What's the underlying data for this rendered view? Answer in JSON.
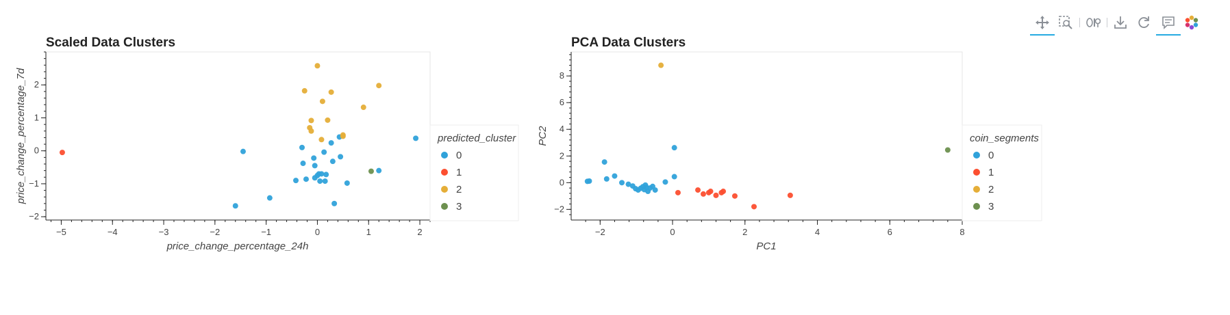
{
  "toolbar": {
    "tools": [
      {
        "name": "pan-tool",
        "icon": "move-icon",
        "active": true
      },
      {
        "name": "box-zoom-tool",
        "icon": "box-zoom-icon",
        "active": false
      },
      {
        "name": "wheel-zoom-tool",
        "icon": "wheel-zoom-icon",
        "active": false
      },
      {
        "name": "save-tool",
        "icon": "save-icon",
        "active": false
      },
      {
        "name": "reset-tool",
        "icon": "reset-icon",
        "active": false
      },
      {
        "name": "hover-tool",
        "icon": "hover-icon",
        "active": true
      },
      {
        "name": "bokeh-logo",
        "icon": "bokeh-logo-icon",
        "active": false
      }
    ],
    "accent": "#26aae1"
  },
  "chart_data": [
    {
      "type": "scatter",
      "title": "Scaled Data Clusters",
      "xlabel": "price_change_percentage_24h",
      "ylabel": "price_change_percentage_7d",
      "xlim": [
        -5.3,
        2.2
      ],
      "ylim": [
        -2.1,
        3.0
      ],
      "xticks": [
        -5,
        -4,
        -3,
        -2,
        -1,
        0,
        1,
        2
      ],
      "yticks": [
        -2,
        -1,
        0,
        1,
        2
      ],
      "legend_title": "predicted_cluster",
      "legend_placement": "right",
      "grid": false,
      "series": [
        {
          "name": "0",
          "color": "#30a2da",
          "points": [
            [
              -1.6,
              -1.67
            ],
            [
              -1.45,
              -0.02
            ],
            [
              -0.93,
              -1.43
            ],
            [
              -0.42,
              -0.9
            ],
            [
              -0.3,
              0.1
            ],
            [
              -0.28,
              -0.38
            ],
            [
              -0.22,
              -0.86
            ],
            [
              -0.07,
              -0.22
            ],
            [
              -0.05,
              -0.45
            ],
            [
              -0.05,
              -0.82
            ],
            [
              0.0,
              -0.75
            ],
            [
              0.03,
              -0.7
            ],
            [
              0.05,
              -0.92
            ],
            [
              0.08,
              -0.7
            ],
            [
              0.13,
              -0.04
            ],
            [
              0.15,
              -0.92
            ],
            [
              0.17,
              -0.72
            ],
            [
              0.27,
              0.24
            ],
            [
              0.3,
              -0.32
            ],
            [
              0.33,
              -1.6
            ],
            [
              0.43,
              0.42
            ],
            [
              0.45,
              -0.18
            ],
            [
              0.58,
              -0.98
            ],
            [
              1.2,
              -0.6
            ],
            [
              1.92,
              0.38
            ]
          ]
        },
        {
          "name": "1",
          "color": "#fc4f30",
          "points": [
            [
              -4.98,
              -0.05
            ]
          ]
        },
        {
          "name": "2",
          "color": "#e5ae38",
          "points": [
            [
              0.0,
              2.58
            ],
            [
              -0.25,
              1.82
            ],
            [
              0.27,
              1.78
            ],
            [
              1.2,
              1.98
            ],
            [
              0.1,
              1.5
            ],
            [
              0.9,
              1.32
            ],
            [
              -0.12,
              0.92
            ],
            [
              0.2,
              0.93
            ],
            [
              -0.15,
              0.7
            ],
            [
              -0.12,
              0.6
            ],
            [
              0.08,
              0.34
            ],
            [
              0.5,
              0.48
            ],
            [
              0.5,
              0.44
            ]
          ]
        },
        {
          "name": "3",
          "color": "#6d904f",
          "points": [
            [
              1.05,
              -0.62
            ]
          ]
        }
      ]
    },
    {
      "type": "scatter",
      "title": "PCA Data Clusters",
      "xlabel": "PC1",
      "ylabel": "PC2",
      "xlim": [
        -2.8,
        8.0
      ],
      "ylim": [
        -2.8,
        9.8
      ],
      "xticks": [
        -2,
        0,
        2,
        4,
        6,
        8
      ],
      "yticks": [
        -2,
        0,
        2,
        4,
        6,
        8
      ],
      "legend_title": "coin_segments",
      "legend_placement": "right",
      "grid": false,
      "series": [
        {
          "name": "0",
          "color": "#30a2da",
          "points": [
            [
              -2.35,
              0.1
            ],
            [
              -2.3,
              0.12
            ],
            [
              -1.88,
              1.55
            ],
            [
              -1.82,
              0.28
            ],
            [
              -1.6,
              0.5
            ],
            [
              -1.4,
              0.0
            ],
            [
              -1.22,
              -0.12
            ],
            [
              -1.1,
              -0.25
            ],
            [
              -1.02,
              -0.45
            ],
            [
              -0.95,
              -0.55
            ],
            [
              -0.88,
              -0.42
            ],
            [
              -0.82,
              -0.3
            ],
            [
              -0.78,
              -0.52
            ],
            [
              -0.75,
              -0.18
            ],
            [
              -0.72,
              -0.35
            ],
            [
              -0.68,
              -0.65
            ],
            [
              -0.62,
              -0.4
            ],
            [
              -0.55,
              -0.28
            ],
            [
              -0.48,
              -0.55
            ],
            [
              -0.2,
              0.05
            ],
            [
              0.05,
              0.45
            ],
            [
              0.05,
              2.62
            ]
          ]
        },
        {
          "name": "1",
          "color": "#fc4f30",
          "points": [
            [
              0.15,
              -0.75
            ],
            [
              0.7,
              -0.55
            ],
            [
              0.85,
              -0.85
            ],
            [
              1.0,
              -0.75
            ],
            [
              1.05,
              -0.65
            ],
            [
              1.2,
              -0.95
            ],
            [
              1.35,
              -0.75
            ],
            [
              1.4,
              -0.65
            ],
            [
              1.72,
              -1.0
            ],
            [
              2.25,
              -1.8
            ],
            [
              3.25,
              -0.95
            ]
          ]
        },
        {
          "name": "2",
          "color": "#e5ae38",
          "points": [
            [
              -0.32,
              8.8
            ]
          ]
        },
        {
          "name": "3",
          "color": "#6d904f",
          "points": [
            [
              7.6,
              2.45
            ]
          ]
        }
      ]
    }
  ]
}
